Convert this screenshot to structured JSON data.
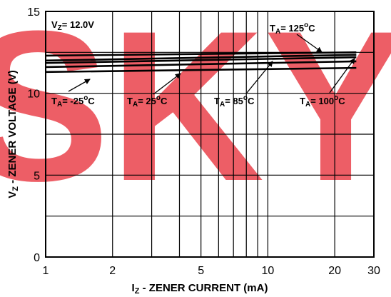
{
  "chart_data": {
    "type": "line",
    "title": "",
    "xlabel": {
      "main": "I",
      "sub": "Z",
      "rest": " - ZENER CURRENT (mA)"
    },
    "ylabel": {
      "main": "V",
      "sub": "Z",
      "rest": " - ZENER VOLTAGE (V)"
    },
    "x_scale": "log",
    "xlim": [
      1,
      30
    ],
    "ylim": [
      0,
      15
    ],
    "x_ticks": [
      1,
      2,
      5,
      10,
      20,
      30
    ],
    "x_tick_labels": [
      "1",
      "2",
      "5",
      "10",
      "20",
      "30"
    ],
    "y_ticks": [
      0,
      5,
      10,
      15
    ],
    "y_tick_labels": [
      "0",
      "5",
      "10",
      "15"
    ],
    "x_gridlines": [
      1,
      2,
      3,
      4,
      5,
      6,
      7,
      8,
      9,
      10,
      20,
      30
    ],
    "y_gridlines": [
      0,
      2.5,
      5,
      7.5,
      10,
      12.5,
      15
    ],
    "grid": true,
    "series": [
      {
        "x": [
          1,
          25
        ],
        "y": [
          11.3,
          11.55
        ]
      },
      {
        "x": [
          1,
          25
        ],
        "y": [
          11.6,
          11.95
        ]
      },
      {
        "x": [
          1,
          25
        ],
        "y": [
          11.85,
          12.2
        ]
      },
      {
        "x": [
          1,
          25
        ],
        "y": [
          12.0,
          12.35
        ]
      },
      {
        "x": [
          1,
          25
        ],
        "y": [
          12.3,
          12.5
        ]
      }
    ],
    "annotations": [
      {
        "id": "vz",
        "main": "V",
        "sub": "Z",
        "rest": "= 12.0V"
      },
      {
        "id": "ta125",
        "main": "T",
        "sub": "A",
        "rest": "= 125",
        "sup": "o",
        "unit": "C"
      },
      {
        "id": "ta-25",
        "main": "T",
        "sub": "A",
        "rest": "= -25",
        "sup": "o",
        "unit": "C"
      },
      {
        "id": "ta25",
        "main": "T",
        "sub": "A",
        "rest": "= 25",
        "sup": "o",
        "unit": "C"
      },
      {
        "id": "ta85",
        "main": "T",
        "sub": "A",
        "rest": "= 85",
        "sup": "o",
        "unit": "C"
      },
      {
        "id": "ta100",
        "main": "T",
        "sub": "A",
        "rest": "= 100",
        "sup": "o",
        "unit": "C"
      }
    ]
  },
  "watermark": {
    "text": "SKY",
    "color": "#e8323c"
  }
}
